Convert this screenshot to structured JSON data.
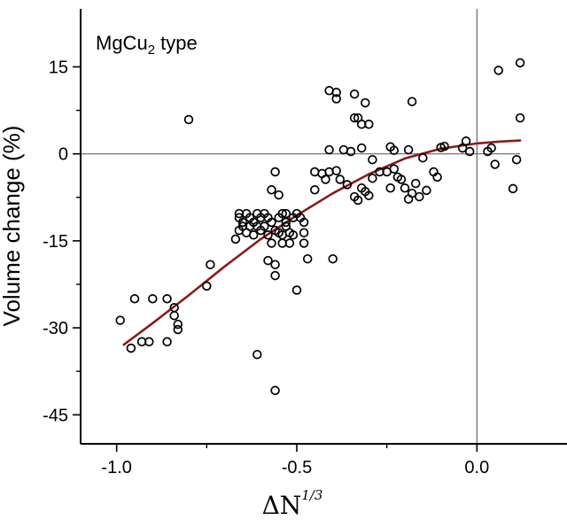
{
  "chart_data": {
    "type": "scatter",
    "ylabel": "Volume change (%)",
    "xlabel": "ΔN",
    "xlabel_superscript": "1/3",
    "annotation": {
      "text_main": "MgCu",
      "text_sub": "2",
      "text_tail": " type"
    },
    "xlim": [
      -1.1,
      0.25
    ],
    "ylim": [
      -50,
      25
    ],
    "xticks": [
      -1.0,
      -0.5,
      0.0
    ],
    "xtick_labels": [
      "-1.0",
      "-0.5",
      "0.0"
    ],
    "xminor": [
      -0.75,
      -0.25
    ],
    "yticks": [
      -45,
      -30,
      -15,
      0,
      15
    ],
    "ytick_labels": [
      "-45",
      "-30",
      "-15",
      "0",
      "15"
    ],
    "yminor": [
      -37.5,
      -22.5,
      -7.5,
      7.5
    ],
    "reference_lines": {
      "x": 0.0,
      "y": 0.0
    },
    "marker_color": "#000000",
    "fit_color": "#8b1a1a",
    "points": [
      {
        "x": -0.99,
        "y": -28.7
      },
      {
        "x": -0.96,
        "y": -33.5
      },
      {
        "x": -0.95,
        "y": -25.0
      },
      {
        "x": -0.93,
        "y": -32.4
      },
      {
        "x": -0.91,
        "y": -32.4
      },
      {
        "x": -0.9,
        "y": -25.0
      },
      {
        "x": -0.86,
        "y": -32.4
      },
      {
        "x": -0.86,
        "y": -25.0
      },
      {
        "x": -0.84,
        "y": -26.5
      },
      {
        "x": -0.84,
        "y": -27.9
      },
      {
        "x": -0.83,
        "y": -29.4
      },
      {
        "x": -0.83,
        "y": -30.3
      },
      {
        "x": -0.8,
        "y": 5.9
      },
      {
        "x": -0.75,
        "y": -22.8
      },
      {
        "x": -0.74,
        "y": -19.1
      },
      {
        "x": -0.67,
        "y": -14.7
      },
      {
        "x": -0.66,
        "y": -13.2
      },
      {
        "x": -0.66,
        "y": -11.0
      },
      {
        "x": -0.66,
        "y": -10.3
      },
      {
        "x": -0.65,
        "y": -12.5
      },
      {
        "x": -0.65,
        "y": -11.8
      },
      {
        "x": -0.64,
        "y": -13.6
      },
      {
        "x": -0.64,
        "y": -10.3
      },
      {
        "x": -0.63,
        "y": -11.0
      },
      {
        "x": -0.63,
        "y": -12.5
      },
      {
        "x": -0.62,
        "y": -11.8
      },
      {
        "x": -0.62,
        "y": -14.0
      },
      {
        "x": -0.61,
        "y": -10.3
      },
      {
        "x": -0.61,
        "y": -12.5
      },
      {
        "x": -0.6,
        "y": -11.0
      },
      {
        "x": -0.6,
        "y": -13.2
      },
      {
        "x": -0.59,
        "y": -12.5
      },
      {
        "x": -0.59,
        "y": -10.3
      },
      {
        "x": -0.61,
        "y": -34.6
      },
      {
        "x": -0.58,
        "y": -14.0
      },
      {
        "x": -0.58,
        "y": -11.0
      },
      {
        "x": -0.58,
        "y": -18.4
      },
      {
        "x": -0.57,
        "y": -15.4
      },
      {
        "x": -0.57,
        "y": -11.8
      },
      {
        "x": -0.57,
        "y": -6.2
      },
      {
        "x": -0.56,
        "y": -3.1
      },
      {
        "x": -0.56,
        "y": -13.2
      },
      {
        "x": -0.56,
        "y": -19.1
      },
      {
        "x": -0.56,
        "y": -21.0
      },
      {
        "x": -0.56,
        "y": -40.8
      },
      {
        "x": -0.55,
        "y": -11.0
      },
      {
        "x": -0.55,
        "y": -13.6
      },
      {
        "x": -0.55,
        "y": -7.1
      },
      {
        "x": -0.54,
        "y": -10.3
      },
      {
        "x": -0.54,
        "y": -14.0
      },
      {
        "x": -0.54,
        "y": -15.4
      },
      {
        "x": -0.53,
        "y": -11.8
      },
      {
        "x": -0.53,
        "y": -12.5
      },
      {
        "x": -0.53,
        "y": -10.3
      },
      {
        "x": -0.52,
        "y": -13.6
      },
      {
        "x": -0.52,
        "y": -15.4
      },
      {
        "x": -0.51,
        "y": -11.0
      },
      {
        "x": -0.51,
        "y": -14.0
      },
      {
        "x": -0.5,
        "y": -10.3
      },
      {
        "x": -0.5,
        "y": -23.5
      },
      {
        "x": -0.49,
        "y": -11.0
      },
      {
        "x": -0.48,
        "y": -13.6
      },
      {
        "x": -0.48,
        "y": -11.8
      },
      {
        "x": -0.48,
        "y": -15.4
      },
      {
        "x": -0.47,
        "y": -18.1
      },
      {
        "x": -0.45,
        "y": -3.1
      },
      {
        "x": -0.45,
        "y": -6.2
      },
      {
        "x": -0.43,
        "y": -3.4
      },
      {
        "x": -0.42,
        "y": -4.4
      },
      {
        "x": -0.41,
        "y": -3.1
      },
      {
        "x": -0.41,
        "y": 0.7
      },
      {
        "x": -0.41,
        "y": 10.9
      },
      {
        "x": -0.4,
        "y": -18.1
      },
      {
        "x": -0.39,
        "y": 10.6
      },
      {
        "x": -0.39,
        "y": 9.5
      },
      {
        "x": -0.39,
        "y": -2.9
      },
      {
        "x": -0.38,
        "y": -4.4
      },
      {
        "x": -0.37,
        "y": 0.7
      },
      {
        "x": -0.36,
        "y": -5.3
      },
      {
        "x": -0.35,
        "y": 0.4
      },
      {
        "x": -0.34,
        "y": 10.3
      },
      {
        "x": -0.34,
        "y": -7.4
      },
      {
        "x": -0.34,
        "y": 6.2
      },
      {
        "x": -0.33,
        "y": -8.0
      },
      {
        "x": -0.33,
        "y": 6.2
      },
      {
        "x": -0.32,
        "y": -5.9
      },
      {
        "x": -0.32,
        "y": 1.0
      },
      {
        "x": -0.32,
        "y": 5.1
      },
      {
        "x": -0.31,
        "y": 8.8
      },
      {
        "x": -0.31,
        "y": -6.5
      },
      {
        "x": -0.3,
        "y": 5.1
      },
      {
        "x": -0.3,
        "y": -7.2
      },
      {
        "x": -0.29,
        "y": -4.2
      },
      {
        "x": -0.29,
        "y": -1.0
      },
      {
        "x": -0.27,
        "y": -3.1
      },
      {
        "x": -0.25,
        "y": -3.1
      },
      {
        "x": -0.24,
        "y": 1.2
      },
      {
        "x": -0.24,
        "y": -5.9
      },
      {
        "x": -0.23,
        "y": -2.6
      },
      {
        "x": -0.23,
        "y": 0.6
      },
      {
        "x": -0.22,
        "y": -4.0
      },
      {
        "x": -0.21,
        "y": -4.4
      },
      {
        "x": -0.2,
        "y": -5.9
      },
      {
        "x": -0.19,
        "y": 0.7
      },
      {
        "x": -0.19,
        "y": -7.8
      },
      {
        "x": -0.18,
        "y": 9.0
      },
      {
        "x": -0.18,
        "y": -6.8
      },
      {
        "x": -0.17,
        "y": -5.1
      },
      {
        "x": -0.16,
        "y": -7.4
      },
      {
        "x": -0.15,
        "y": -0.7
      },
      {
        "x": -0.14,
        "y": -6.3
      },
      {
        "x": -0.12,
        "y": -3.1
      },
      {
        "x": -0.11,
        "y": -4.0
      },
      {
        "x": -0.1,
        "y": 1.1
      },
      {
        "x": -0.09,
        "y": 1.3
      },
      {
        "x": -0.04,
        "y": 1.0
      },
      {
        "x": -0.03,
        "y": 2.2
      },
      {
        "x": -0.02,
        "y": 0.4
      },
      {
        "x": 0.03,
        "y": 0.4
      },
      {
        "x": 0.04,
        "y": 1.0
      },
      {
        "x": 0.05,
        "y": -1.8
      },
      {
        "x": 0.06,
        "y": 14.4
      },
      {
        "x": 0.1,
        "y": -6.0
      },
      {
        "x": 0.11,
        "y": -1.0
      },
      {
        "x": 0.12,
        "y": 15.7
      },
      {
        "x": 0.12,
        "y": 6.2
      }
    ],
    "fit_curve": [
      {
        "x": -0.98,
        "y": -32.9
      },
      {
        "x": -0.9,
        "y": -29.2
      },
      {
        "x": -0.8,
        "y": -24.4
      },
      {
        "x": -0.7,
        "y": -19.4
      },
      {
        "x": -0.6,
        "y": -14.7
      },
      {
        "x": -0.5,
        "y": -10.6
      },
      {
        "x": -0.4,
        "y": -6.8
      },
      {
        "x": -0.3,
        "y": -3.5
      },
      {
        "x": -0.2,
        "y": -0.8
      },
      {
        "x": -0.1,
        "y": 0.9
      },
      {
        "x": 0.0,
        "y": 1.8
      },
      {
        "x": 0.06,
        "y": 2.1
      },
      {
        "x": 0.12,
        "y": 2.3
      }
    ]
  }
}
